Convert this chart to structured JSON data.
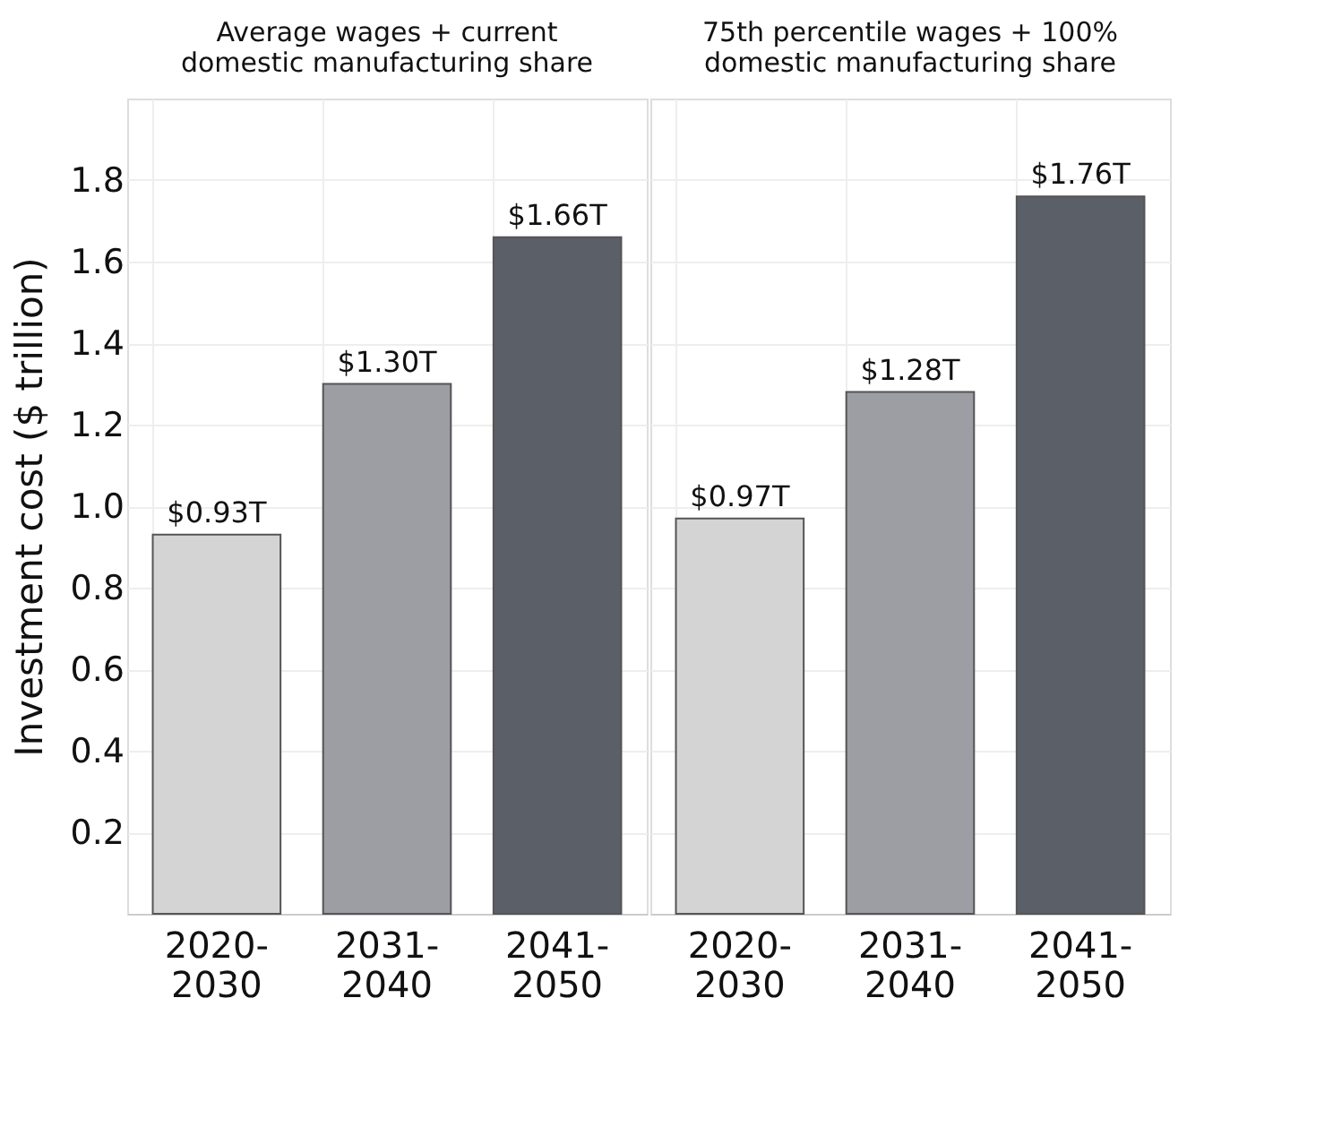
{
  "chart_data": [
    {
      "type": "bar",
      "title": "Average wages + current\ndomestic manufacturing share",
      "ylabel": "Investment cost ($ trillion)",
      "categories": [
        "2020-2030",
        "2031-2040",
        "2041-2050"
      ],
      "values": [
        0.93,
        1.3,
        1.66
      ],
      "colors": [
        "#d4d4d4",
        "#9c9ea4",
        "#5b5f67"
      ],
      "value_labels": [
        "$0.93T",
        "$1.30T",
        "$1.66T"
      ],
      "ylim": [
        0,
        2.0
      ],
      "yticks": [
        0.2,
        0.4,
        0.6,
        0.8,
        {
          "value": 1.0,
          "label": "1.0"
        },
        1.2,
        1.4,
        1.6,
        1.8
      ],
      "grid": true
    },
    {
      "type": "bar",
      "title": "75th percentile wages + 100%\ndomestic manufacturing share",
      "categories": [
        "2020-2030",
        "2031-2040",
        "2041-2050"
      ],
      "values": [
        0.97,
        1.28,
        1.76
      ],
      "colors": [
        "#d4d4d4",
        "#9c9ea4",
        "#5b5f67"
      ],
      "value_labels": [
        "$0.97T",
        "$1.28T",
        "$1.76T"
      ],
      "ylim": [
        0,
        2.0
      ],
      "yticks": [
        0.2,
        0.4,
        0.6,
        0.8,
        1.0,
        1.2,
        1.4,
        1.6,
        1.8
      ],
      "grid": true,
      "tick_labels": "x"
    }
  ]
}
